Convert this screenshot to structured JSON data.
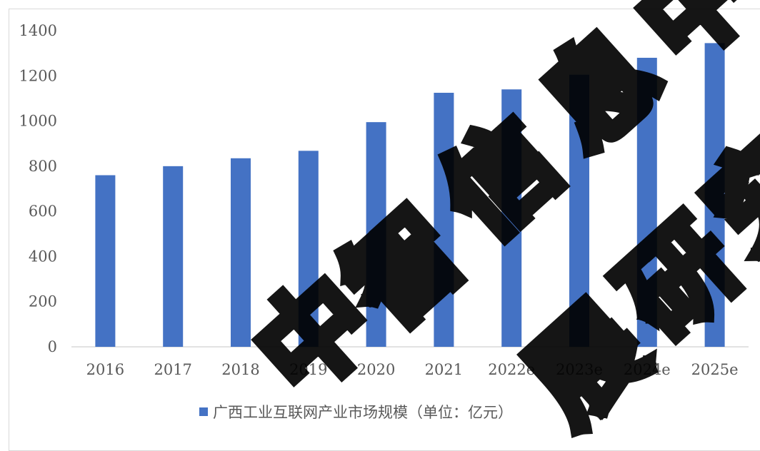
{
  "chart_data": {
    "type": "bar",
    "categories": [
      "2016",
      "2017",
      "2018",
      "2019",
      "2020",
      "2021",
      "2022e",
      "2023e",
      "2024e",
      "2025e"
    ],
    "series": [
      {
        "name": "广西工业互联网产业市场规模（单位：亿元）",
        "values": [
          760,
          800,
          835,
          868,
          995,
          1125,
          1140,
          1205,
          1280,
          1345
        ],
        "color": "#4472c4"
      }
    ],
    "yticks": [
      0,
      200,
      400,
      600,
      800,
      1000,
      1200,
      1400
    ],
    "ylim": [
      0,
      1400
    ],
    "grid": false,
    "legend_position": "bottom"
  },
  "watermark": {
    "text": "中智信息研究"
  }
}
